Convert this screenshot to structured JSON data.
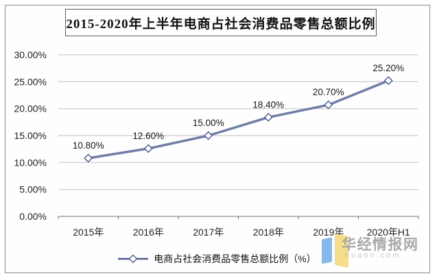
{
  "title": "2015-2020年上半年电商占社会消费品零售总额比例",
  "chart_data": {
    "type": "line",
    "title": "2015-2020年上半年电商占社会消费品零售总额比例",
    "categories": [
      "2015年",
      "2016年",
      "2017年",
      "2018年",
      "2019年",
      "2020年H1"
    ],
    "series": [
      {
        "name": "电商占社会消费品零售总额比例（%）",
        "values": [
          10.8,
          12.6,
          15.0,
          18.4,
          20.7,
          25.2
        ]
      }
    ],
    "data_labels": [
      "10.80%",
      "12.60%",
      "15.00%",
      "18.40%",
      "20.70%",
      "25.20%"
    ],
    "y_ticks": [
      "0.00%",
      "5.00%",
      "10.00%",
      "15.00%",
      "20.00%",
      "25.00%",
      "30.00%"
    ],
    "ylim": [
      0,
      30
    ],
    "xlabel": "",
    "ylabel": "",
    "grid": true,
    "legend_position": "bottom",
    "line_color": "#6f7da7",
    "marker": "diamond",
    "marker_fill": "#ffffff",
    "marker_stroke": "#47588e",
    "gridline_color": "#bfbfbf",
    "axis_color": "#6e6e6e",
    "label_color": "#1f1f1f"
  },
  "legend": {
    "label": "电商占社会消费品零售总额比例（%）",
    "glyph_color": "#4a5a94"
  },
  "watermark": {
    "name": "华经情报网",
    "domain": "huaon.com",
    "logo_blue": "#86b8ea",
    "logo_yellow": "#f6dd8b"
  }
}
